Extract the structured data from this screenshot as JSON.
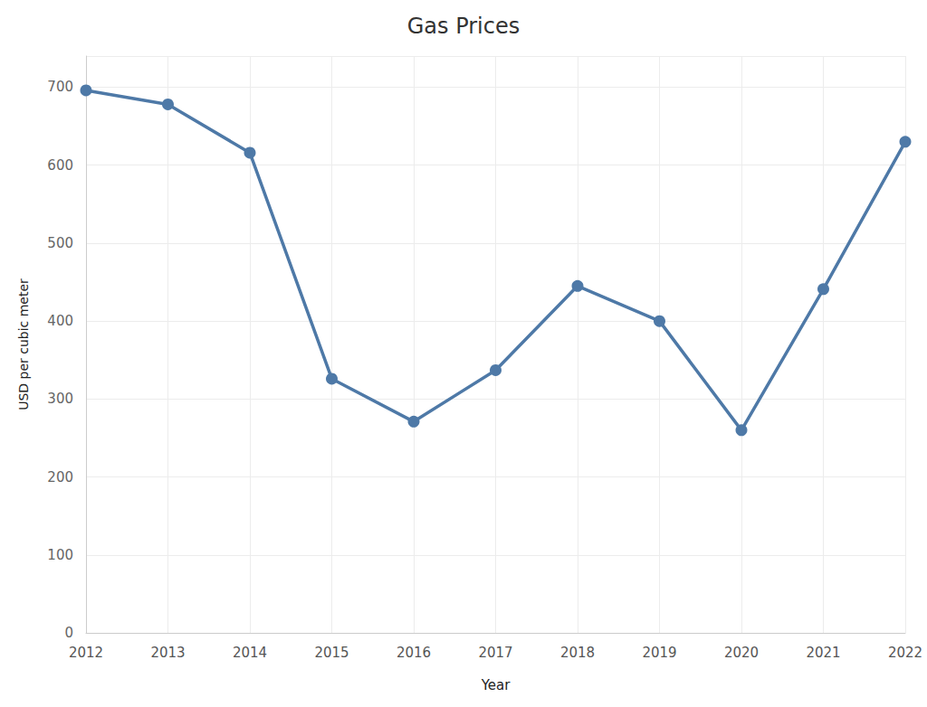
{
  "chart_data": {
    "type": "line",
    "title": "Gas Prices",
    "x_label": "Year",
    "y_label": "USD per cubic meter",
    "categories": [
      "2012",
      "2013",
      "2014",
      "2015",
      "2016",
      "2017",
      "2018",
      "2019",
      "2020",
      "2021",
      "2022"
    ],
    "values": [
      696,
      678,
      616,
      326,
      271,
      337,
      445,
      400,
      260,
      441,
      630
    ],
    "color": "#4e79a7",
    "marker": "circle",
    "line_style": "solid",
    "ylim": [
      0,
      740
    ],
    "yticks": [
      0,
      100,
      200,
      300,
      400,
      500,
      600,
      700
    ],
    "grid": true
  }
}
